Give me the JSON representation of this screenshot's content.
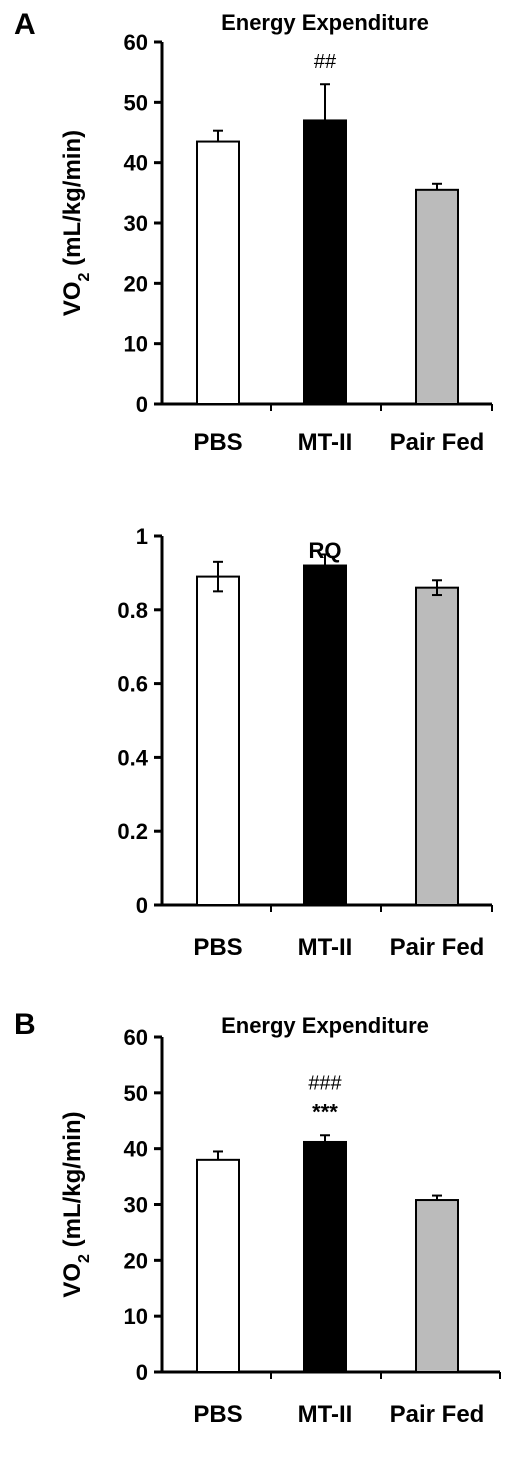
{
  "panels": [
    {
      "letter": "A"
    },
    {
      "letter": ""
    },
    {
      "letter": "B"
    }
  ],
  "colors": {
    "PBS": "#ffffff",
    "MT-II": "#000000",
    "Pair Fed": "#bbbbbb",
    "axis": "#000000"
  },
  "chart_data": [
    {
      "type": "bar",
      "title": "Energy Expenditure",
      "ylabel": "VO",
      "ylabel_sub": "2",
      "ylabel_tail": " (mL/kg/min)",
      "categories": [
        "PBS",
        "MT-II",
        "Pair Fed"
      ],
      "values": [
        43.5,
        47,
        35.5
      ],
      "errors": [
        1.8,
        6,
        1.0
      ],
      "annotations": [
        [
          "",
          "##",
          ""
        ]
      ],
      "ylim": [
        0,
        60
      ],
      "yticks": [
        0,
        10,
        20,
        30,
        40,
        50,
        60
      ],
      "ytick_labels": [
        "0",
        "10",
        "20",
        "30",
        "40",
        "50",
        "60"
      ],
      "grid": false,
      "legend": "none"
    },
    {
      "type": "bar",
      "title": "RQ",
      "categories": [
        "PBS",
        "MT-II",
        "Pair Fed"
      ],
      "values": [
        0.89,
        0.92,
        0.86
      ],
      "errors": [
        0.04,
        0.03,
        0.02
      ],
      "annotations": [],
      "ylim": [
        0,
        1
      ],
      "yticks": [
        0,
        0.2,
        0.4,
        0.6,
        0.8,
        1
      ],
      "ytick_labels": [
        "0",
        "0.2",
        "0.4",
        "0.6",
        "0.8",
        "1"
      ],
      "grid": false,
      "legend": "none"
    },
    {
      "type": "bar",
      "title": "Energy Expenditure",
      "ylabel": "VO",
      "ylabel_sub": "2",
      "ylabel_tail": " (mL/kg/min)",
      "categories": [
        "PBS",
        "MT-II",
        "Pair Fed"
      ],
      "values": [
        38,
        41.2,
        30.8
      ],
      "errors": [
        1.5,
        1.2,
        0.8
      ],
      "annotations": [
        [
          "",
          "###",
          ""
        ],
        [
          "",
          "***",
          ""
        ]
      ],
      "ylim": [
        0,
        60
      ],
      "yticks": [
        0,
        10,
        20,
        30,
        40,
        50,
        60
      ],
      "ytick_labels": [
        "0",
        "10",
        "20",
        "30",
        "40",
        "50",
        "60"
      ],
      "grid": false,
      "legend": "none"
    }
  ]
}
